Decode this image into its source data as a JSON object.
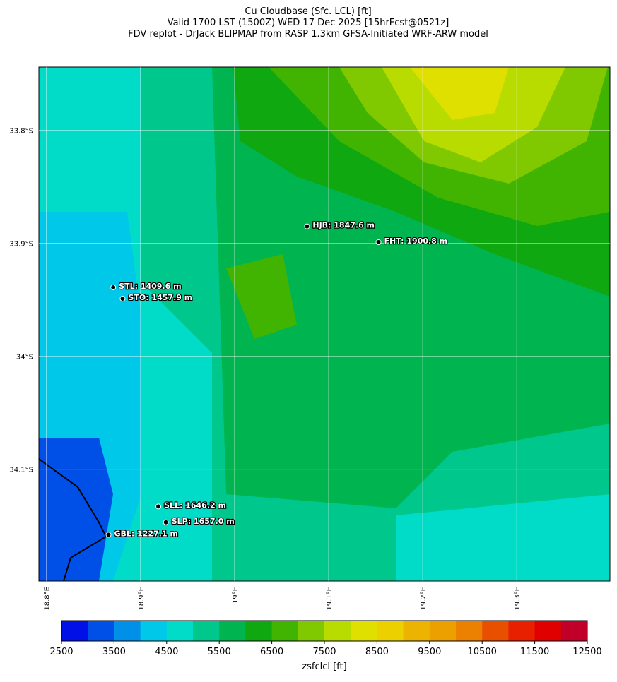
{
  "title": [
    "Cu Cloudbase (Sfc. LCL) [ft]",
    "Valid 1700 LST (1500Z) WED 17 Dec 2025 [15hrFcst@0521z]",
    "FDV replot - DrJack BLIPMAP from RASP 1.3km GFSA-Initiated WRF-ARW model"
  ],
  "map": {
    "xlim": [
      18.792,
      19.399
    ],
    "ylim": [
      -34.199,
      -33.744
    ],
    "xticks": [
      {
        "value": 18.8,
        "label": "18.8°E"
      },
      {
        "value": 18.9,
        "label": "18.9°E"
      },
      {
        "value": 19.0,
        "label": "19°E"
      },
      {
        "value": 19.1,
        "label": "19.1°E"
      },
      {
        "value": 19.2,
        "label": "19.2°E"
      },
      {
        "value": 19.3,
        "label": "19.3°E"
      }
    ],
    "yticks": [
      {
        "value": -33.8,
        "label": "33.8°S"
      },
      {
        "value": -33.9,
        "label": "33.9°S"
      },
      {
        "value": -34.0,
        "label": "34°S"
      },
      {
        "value": -34.1,
        "label": "34.1°S"
      }
    ],
    "stations": [
      {
        "label": "HJB: 1847.6 m",
        "lon": 19.077,
        "lat": -33.885
      },
      {
        "label": "FHT: 1900.8 m",
        "lon": 19.153,
        "lat": -33.899
      },
      {
        "label": "STL: 1409.6 m",
        "lon": 18.871,
        "lat": -33.939
      },
      {
        "label": "STO: 1457.9 m",
        "lon": 18.881,
        "lat": -33.949
      },
      {
        "label": "SLL: 1646.2 m",
        "lon": 18.919,
        "lat": -34.133
      },
      {
        "label": "SLP: 1657.0 m",
        "lon": 18.927,
        "lat": -34.147
      },
      {
        "label": "GBL: 1227.1 m",
        "lon": 18.866,
        "lat": -34.158
      }
    ]
  },
  "colorbar": {
    "label": "zsfclcl [ft]",
    "lim": [
      2500,
      12500
    ],
    "ticks": [
      2500,
      3500,
      4500,
      5500,
      6500,
      7500,
      8500,
      9500,
      10500,
      11500,
      12500
    ],
    "colors": [
      "#0010e6",
      "#0050e8",
      "#0090e8",
      "#00c8e8",
      "#00dcc8",
      "#00c88c",
      "#00b450",
      "#10a810",
      "#40b400",
      "#80c800",
      "#b8dc00",
      "#e0e000",
      "#ecd000",
      "#ecb400",
      "#eca000",
      "#ec8000",
      "#e85000",
      "#e82000",
      "#e00000",
      "#c00028"
    ]
  }
}
